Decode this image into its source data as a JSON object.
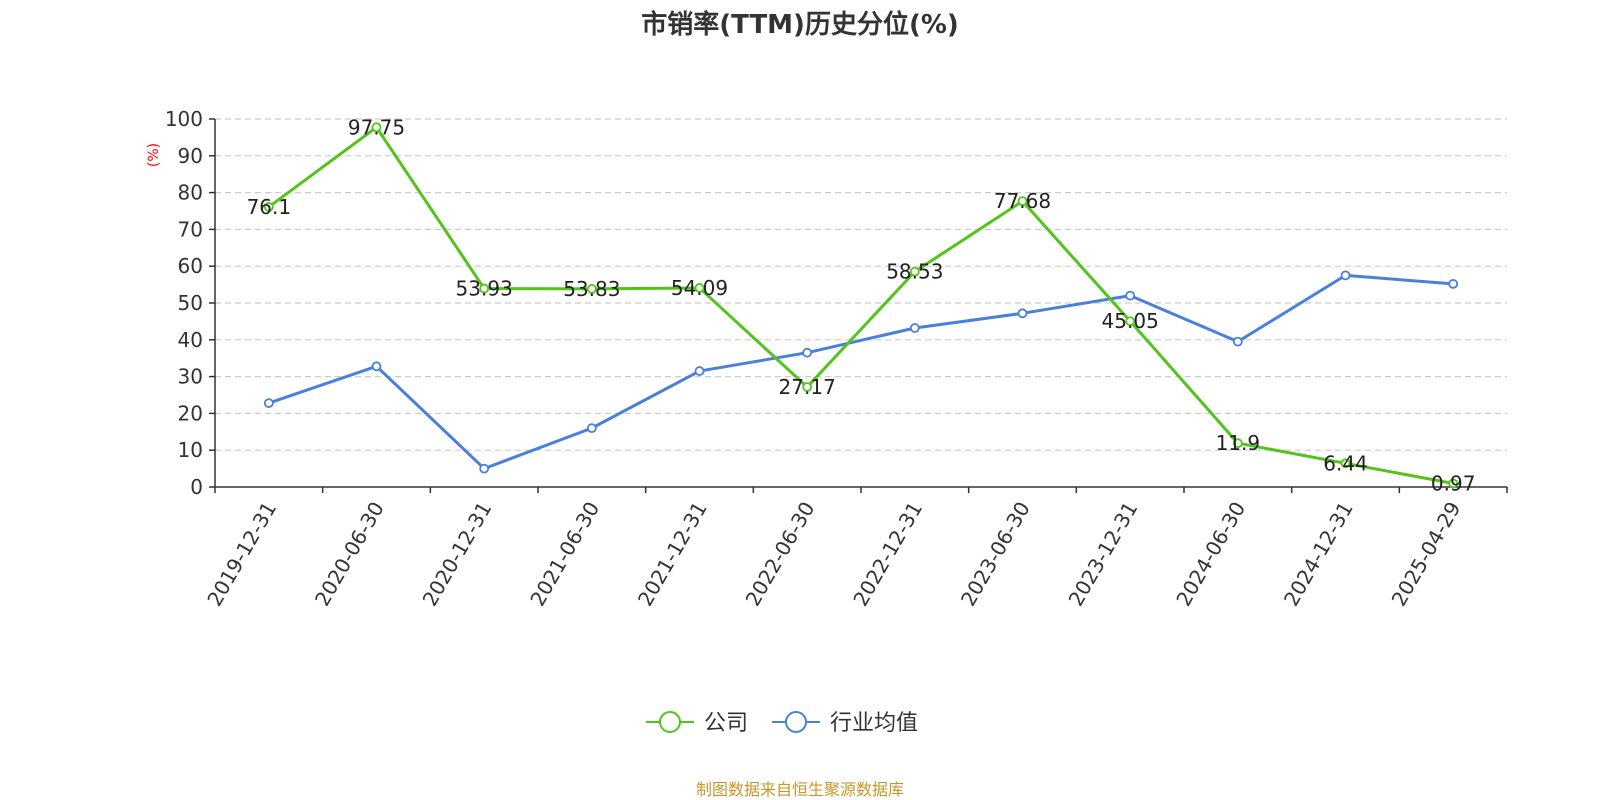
{
  "chart_data": {
    "type": "line",
    "title": "市销率(TTM)历史分位(%)",
    "ylabel": "(%)",
    "xlabel": "",
    "ylim": [
      0,
      100
    ],
    "yticks": [
      0,
      10,
      20,
      30,
      40,
      50,
      60,
      70,
      80,
      90,
      100
    ],
    "grid": true,
    "legend_placement": "bottom-center",
    "categories": [
      "2019-12-31",
      "2020-06-30",
      "2020-12-31",
      "2021-06-30",
      "2021-12-31",
      "2022-06-30",
      "2022-12-31",
      "2023-06-30",
      "2023-12-31",
      "2024-06-30",
      "2024-12-31",
      "2025-04-29"
    ],
    "series": [
      {
        "name": "公司",
        "color": "#52c41a",
        "values": [
          76.1,
          97.75,
          53.93,
          53.83,
          54.09,
          27.17,
          58.53,
          77.68,
          45.05,
          11.9,
          6.44,
          0.97
        ],
        "data_labels": [
          "76.1",
          "97.75",
          "53.93",
          "53.83",
          "54.09",
          "27.17",
          "58.53",
          "77.68",
          "45.05",
          "11.9",
          "6.44",
          "0.97"
        ]
      },
      {
        "name": "行业均值",
        "color": "#4a7fdc",
        "values": [
          22.8,
          32.8,
          5.0,
          16.0,
          31.5,
          36.5,
          43.2,
          47.2,
          52.0,
          39.5,
          57.5,
          55.2
        ]
      }
    ],
    "source": "制图数据来自恒生聚源数据库",
    "source_color": "#c8962a"
  }
}
